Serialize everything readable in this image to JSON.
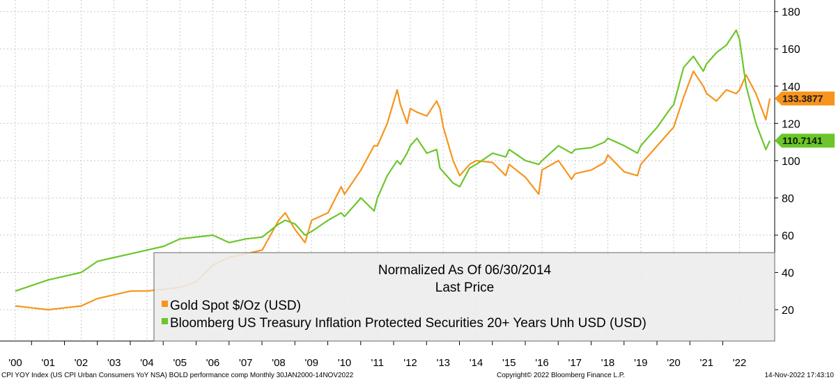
{
  "chart_data": {
    "type": "line",
    "title": "Normalized As Of 06/30/2014",
    "subtitle": "Last Price",
    "y_axis_position": "right",
    "ylim": [
      10,
      185
    ],
    "yticks": [
      20,
      40,
      60,
      80,
      100,
      120,
      140,
      160,
      180
    ],
    "x_range": [
      2000,
      2022.92
    ],
    "xtick_labels": [
      "'00",
      "'01",
      "'02",
      "'03",
      "'04",
      "'05",
      "'06",
      "'07",
      "'08",
      "'09",
      "'10",
      "'11",
      "'12",
      "'13",
      "'14",
      "'15",
      "'16",
      "'17",
      "'18",
      "'19",
      "'20",
      "'21",
      "'22"
    ],
    "grid": true,
    "legend_placement": "bottom-center",
    "series": [
      {
        "name": "Gold Spot $/Oz (USD)",
        "color": "#f7941d",
        "last_price": "133.3877",
        "x": [
          2000.0,
          2000.5,
          2001.0,
          2001.5,
          2002.0,
          2002.5,
          2003.0,
          2003.5,
          2004.0,
          2004.5,
          2005.0,
          2005.5,
          2006.0,
          2006.5,
          2007.0,
          2007.5,
          2008.0,
          2008.2,
          2008.5,
          2008.8,
          2009.0,
          2009.5,
          2009.9,
          2010.0,
          2010.5,
          2010.9,
          2011.0,
          2011.3,
          2011.6,
          2011.7,
          2011.9,
          2012.0,
          2012.2,
          2012.5,
          2012.8,
          2012.9,
          2013.0,
          2013.3,
          2013.5,
          2013.8,
          2014.0,
          2014.5,
          2014.9,
          2015.0,
          2015.5,
          2015.9,
          2016.0,
          2016.5,
          2016.9,
          2017.0,
          2017.5,
          2017.9,
          2018.0,
          2018.5,
          2018.9,
          2019.0,
          2019.5,
          2019.9,
          2020.0,
          2020.3,
          2020.6,
          2020.9,
          2021.0,
          2021.3,
          2021.6,
          2021.9,
          2022.0,
          2022.2,
          2022.5,
          2022.8,
          2022.92
        ],
        "values": [
          22,
          21,
          20,
          21,
          22,
          26,
          28,
          30,
          30,
          31,
          32,
          35,
          44,
          48,
          50,
          52,
          68,
          72,
          63,
          56,
          68,
          72,
          86,
          82,
          95,
          108,
          108,
          120,
          138,
          130,
          120,
          128,
          126,
          124,
          132,
          128,
          118,
          100,
          92,
          98,
          100,
          99,
          92,
          98,
          91,
          82,
          95,
          100,
          90,
          93,
          95,
          99,
          103,
          94,
          92,
          98,
          108,
          116,
          118,
          134,
          148,
          140,
          136,
          132,
          138,
          136,
          138,
          146,
          136,
          122,
          133.3877
        ]
      },
      {
        "name": "Bloomberg US Treasury Inflation Protected Securities 20+ Years Unh USD (USD)",
        "color": "#6cc62b",
        "last_price": "110.7141",
        "x": [
          2000.0,
          2000.5,
          2001.0,
          2001.5,
          2002.0,
          2002.5,
          2003.0,
          2003.5,
          2004.0,
          2004.5,
          2005.0,
          2005.5,
          2006.0,
          2006.5,
          2007.0,
          2007.5,
          2008.0,
          2008.2,
          2008.5,
          2008.8,
          2009.0,
          2009.5,
          2009.9,
          2010.0,
          2010.5,
          2010.9,
          2011.0,
          2011.3,
          2011.6,
          2011.7,
          2011.9,
          2012.0,
          2012.2,
          2012.5,
          2012.8,
          2012.9,
          2013.0,
          2013.3,
          2013.5,
          2013.8,
          2014.0,
          2014.5,
          2014.9,
          2015.0,
          2015.5,
          2015.9,
          2016.0,
          2016.5,
          2016.9,
          2017.0,
          2017.5,
          2017.9,
          2018.0,
          2018.5,
          2018.9,
          2019.0,
          2019.5,
          2019.9,
          2020.0,
          2020.3,
          2020.6,
          2020.9,
          2021.0,
          2021.3,
          2021.6,
          2021.9,
          2022.0,
          2022.2,
          2022.5,
          2022.8,
          2022.92
        ],
        "values": [
          30,
          33,
          36,
          38,
          40,
          46,
          48,
          50,
          52,
          54,
          58,
          59,
          60,
          56,
          58,
          59,
          66,
          68,
          66,
          60,
          62,
          68,
          72,
          70,
          80,
          73,
          80,
          92,
          100,
          98,
          104,
          108,
          112,
          104,
          106,
          96,
          94,
          88,
          86,
          96,
          98,
          104,
          102,
          106,
          100,
          98,
          100,
          108,
          104,
          106,
          107,
          110,
          112,
          108,
          104,
          108,
          118,
          128,
          130,
          150,
          156,
          148,
          152,
          158,
          162,
          170,
          165,
          140,
          120,
          106,
          110.7141
        ]
      }
    ]
  },
  "footer": {
    "left": "CPI YOY Index (US CPI Urban Consumers YoY NSA) BOLD performance comp  Monthly 30JAN2000-14NOV2022",
    "center": "Copyright© 2022 Bloomberg Finance L.P.",
    "right": "14-Nov-2022 17:43:10"
  }
}
